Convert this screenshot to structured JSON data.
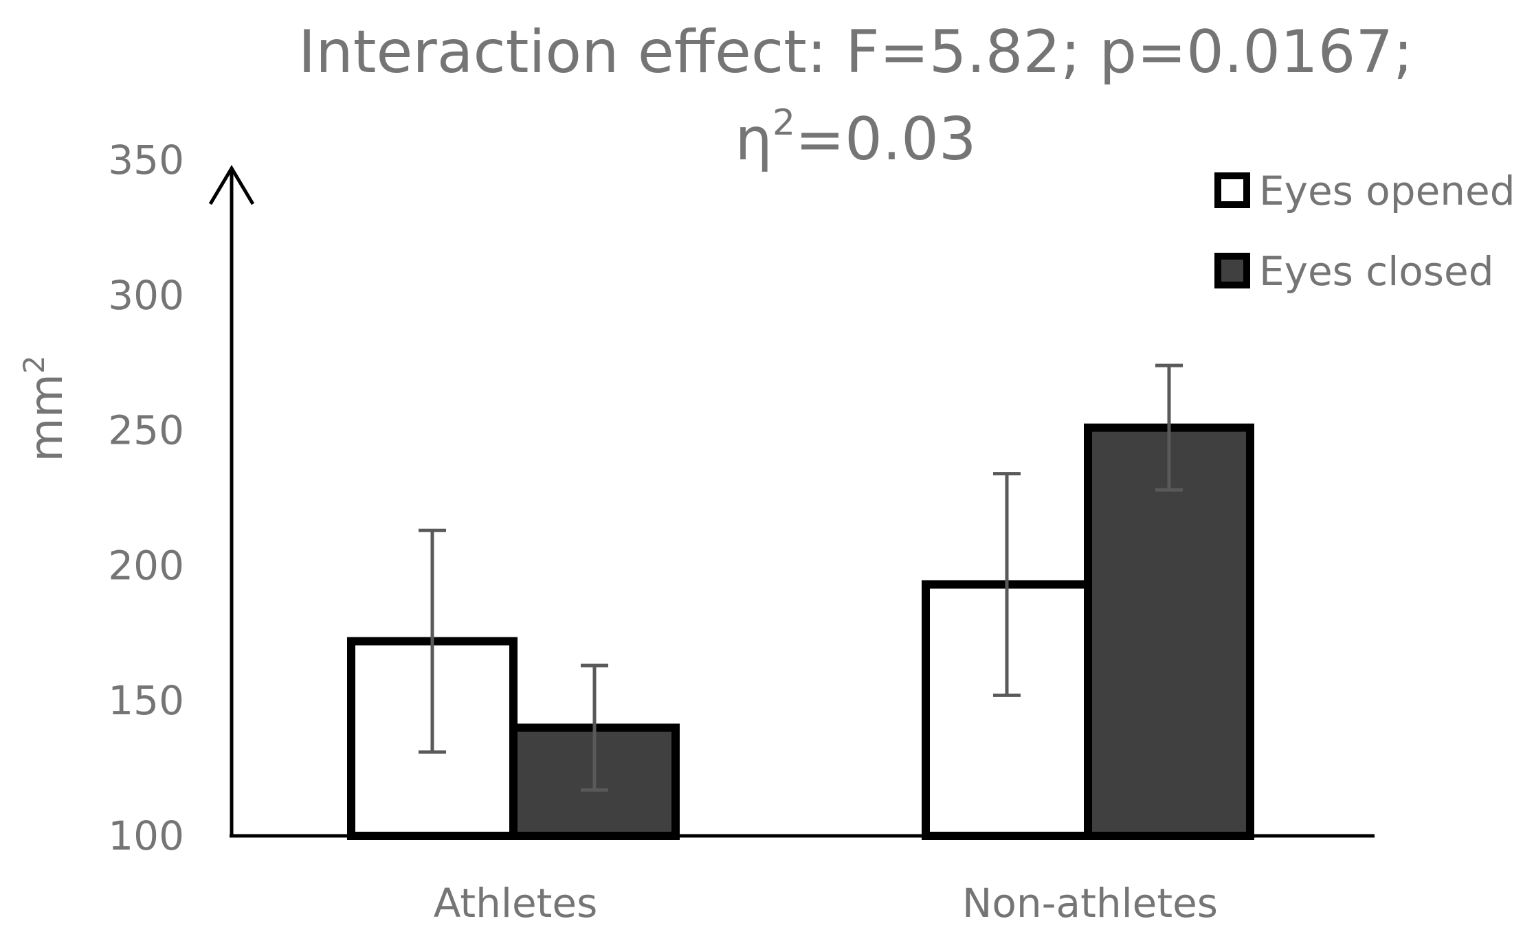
{
  "chart_data": {
    "type": "bar",
    "title": "Interaction effect: F=5.82; p=0.0167;",
    "title_line2": {
      "symbol": "η",
      "superscript": "2",
      "value": "=0.03"
    },
    "xlabel": "",
    "ylabel": {
      "text": "mm",
      "superscript": "2"
    },
    "ylim": [
      100,
      350
    ],
    "yticks": [
      100,
      150,
      200,
      250,
      300,
      350
    ],
    "grid": false,
    "legend_position": "top-right",
    "categories": [
      "Athletes",
      "Non-athletes"
    ],
    "series": [
      {
        "name": "Eyes opened",
        "values": [
          172,
          193
        ],
        "error_low": [
          131,
          152
        ],
        "error_high": [
          213,
          234
        ],
        "fill": "#ffffff"
      },
      {
        "name": "Eyes closed",
        "values": [
          140,
          251
        ],
        "error_low": [
          117,
          228
        ],
        "error_high": [
          163,
          274
        ],
        "fill": "#404040"
      }
    ],
    "colors": {
      "bar_stroke": "#000000",
      "error_bar": "#595959",
      "axis": "#000000",
      "text": "#757575"
    }
  }
}
